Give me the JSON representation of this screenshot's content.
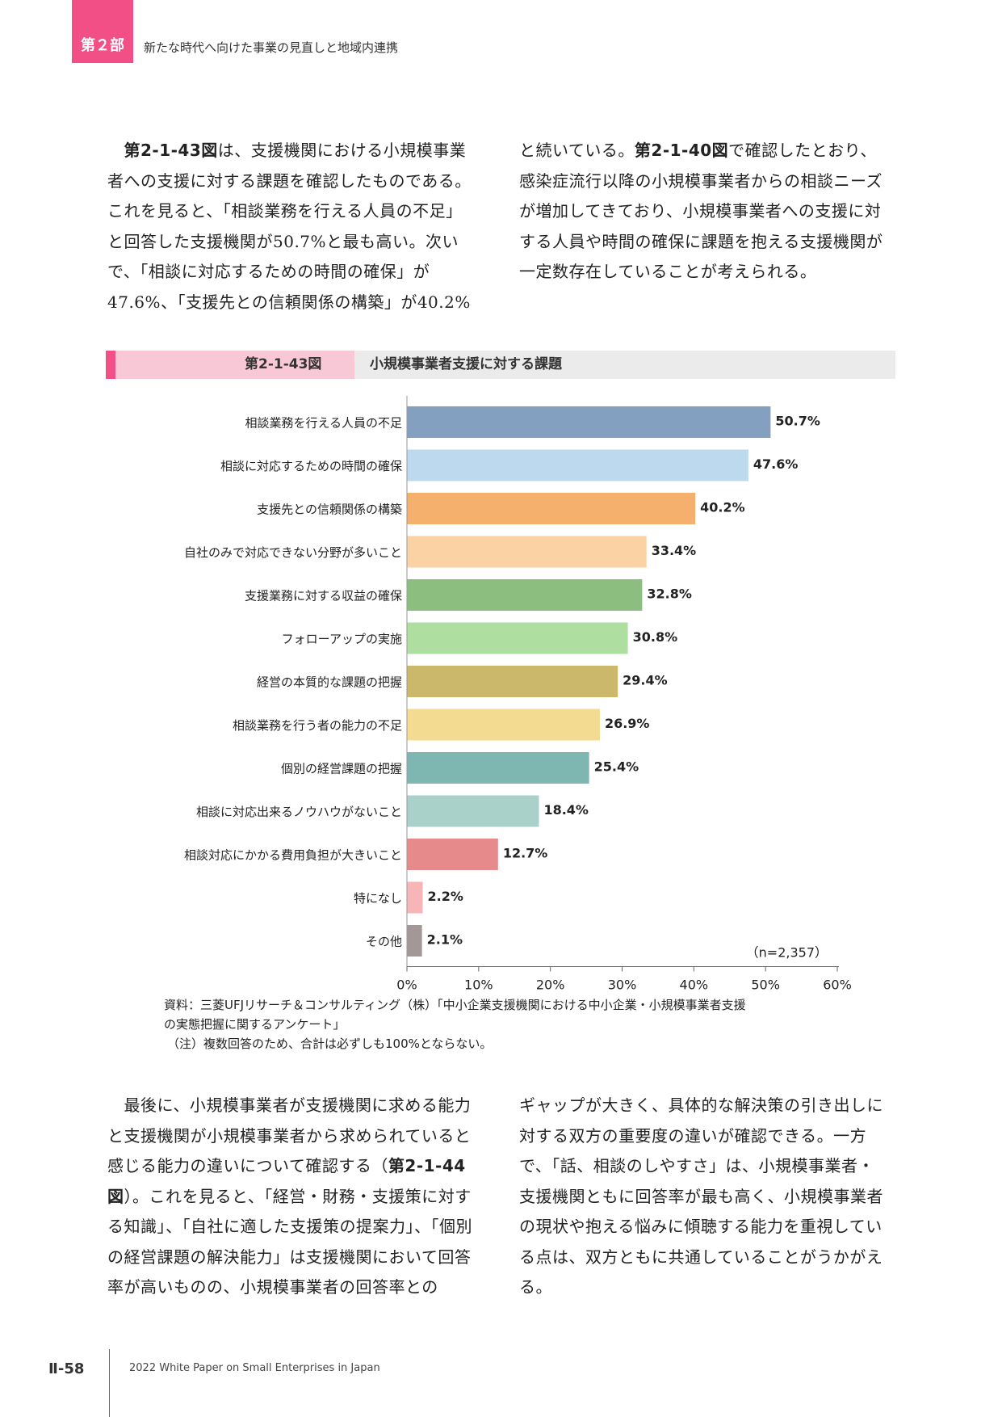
{
  "header": {
    "part_label": "第２部",
    "part_title": "新たな時代へ向けた事業の見直しと地域内連携"
  },
  "intro": {
    "left_lines": [
      [
        "",
        "　",
        "第2-1-43図",
        "は、支援機関における小規模事業"
      ],
      [
        "者への支援に対する課題を確認したものである。"
      ],
      [
        "これを見ると、「相談業務を行える人員の不足」"
      ],
      [
        "と回答した支援機関が50.7%と最も高い。次い"
      ],
      [
        "で、「相談に対応するための時間の確保」が"
      ],
      [
        "47.6%、「支援先との信頼関係の構築」が40.2%"
      ]
    ],
    "right_lines": [
      [
        "と続いている。",
        "第2-1-40図",
        "で確認したとおり、"
      ],
      [
        "感染症流行以降の小規模事業者からの相談ニーズ"
      ],
      [
        "が増加してきており、小規模事業者への支援に対"
      ],
      [
        "する人員や時間の確保に課題を抱える支援機関が"
      ],
      [
        "一定数存在していることが考えられる。"
      ]
    ]
  },
  "figure": {
    "number": "第2-1-43図",
    "title": "小規模事業者支援に対する課題"
  },
  "chart_data": {
    "type": "bar",
    "orientation": "horizontal",
    "categories": [
      "相談業務を行える人員の不足",
      "相談に対応するための時間の確保",
      "支援先との信頼関係の構築",
      "自社のみで対応できない分野が多いこと",
      "支援業務に対する収益の確保",
      "フォローアップの実施",
      "経営の本質的な課題の把握",
      "相談業務を行う者の能力の不足",
      "個別の経営課題の把握",
      "相談に対応出来るノウハウがないこと",
      "相談対応にかかる費用負担が大きいこと",
      "特になし",
      "その他"
    ],
    "values": [
      50.7,
      47.6,
      40.2,
      33.4,
      32.8,
      30.8,
      29.4,
      26.9,
      25.4,
      18.4,
      12.7,
      2.2,
      2.1
    ],
    "value_labels": [
      "50.7%",
      "47.6%",
      "40.2%",
      "33.4%",
      "32.8%",
      "30.8%",
      "29.4%",
      "26.9%",
      "25.4%",
      "18.4%",
      "12.7%",
      "2.2%",
      "2.1%"
    ],
    "colors": [
      "#84a0c0",
      "#bcd9ed",
      "#f4b06c",
      "#fbd2a3",
      "#8cbe80",
      "#aedfa0",
      "#cbb86a",
      "#f3dc92",
      "#7eb7b2",
      "#a9d0c9",
      "#e68a8b",
      "#f8b5b7",
      "#a39898"
    ],
    "xlim": [
      0,
      60
    ],
    "ticks": [
      0,
      10,
      20,
      30,
      40,
      50,
      60
    ],
    "tick_labels": [
      "0%",
      "10%",
      "20%",
      "30%",
      "40%",
      "50%",
      "60%"
    ],
    "n_label": "（n=2,357）"
  },
  "notes": {
    "source_1": "資料：三菱UFJリサーチ＆コンサルティング（株）「中小企業支援機関における中小企業・小規模事業者支援",
    "source_2": "の実態把握に関するアンケート」",
    "note": "（注）複数回答のため、合計は必ずしも100%とならない。"
  },
  "outro": {
    "left_lines": [
      [
        "",
        "　最後に、小規模事業者が支援機関に求める能力"
      ],
      [
        "と支援機関が小規模事業者から求められていると"
      ],
      [
        "感じる能力の違いについて確認する（",
        "第2-1-44",
        ""
      ],
      [
        "図",
        "）。これを見ると、「経営・財務・支援策に対す"
      ],
      [
        "る知識」、「自社に適した支援策の提案力」、「個別"
      ],
      [
        "の経営課題の解決能力」は支援機関において回答"
      ],
      [
        "率が高いものの、小規模事業者の回答率との"
      ]
    ],
    "right_lines": [
      [
        "ギャップが大きく、具体的な解決策の引き出しに"
      ],
      [
        "対する双方の重要度の違いが確認できる。一方"
      ],
      [
        "で、「話、相談のしやすさ」は、小規模事業者・"
      ],
      [
        "支援機関ともに回答率が最も高く、小規模事業者"
      ],
      [
        "の現状や抱える悩みに傾聴する能力を重視してい"
      ],
      [
        "る点は、双方ともに共通していることがうかがえ"
      ],
      [
        "る。"
      ]
    ]
  },
  "footer": {
    "page": "Ⅱ-58",
    "text": "2022 White Paper on Small Enterprises in Japan"
  }
}
